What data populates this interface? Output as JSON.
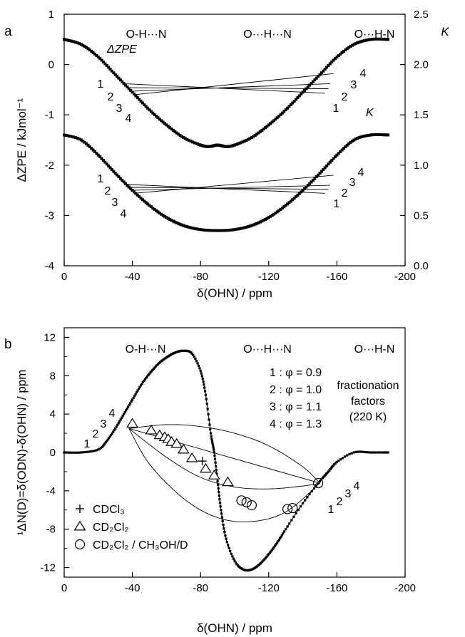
{
  "chart_data": [
    {
      "type": "line",
      "panel": "a",
      "xlabel": "δ(OHN) / ppm",
      "ylabel": "ΔZPE / kJmol⁻¹",
      "y2label": "K",
      "xlim": [
        0,
        -200
      ],
      "ylim": [
        -4,
        1
      ],
      "y2lim": [
        0,
        2.5
      ],
      "x_ticks": [
        "0",
        "-40",
        "-80",
        "-120",
        "-160",
        "-200"
      ],
      "x_tick_values": [
        0,
        -40,
        -80,
        -120,
        -160,
        -200
      ],
      "y_ticks": [
        "-4",
        "-3",
        "-2",
        "-1",
        "0",
        "1"
      ],
      "y_tick_values": [
        -4,
        -3,
        -2,
        -1,
        0,
        1
      ],
      "y2_ticks": [
        "0.0",
        "0.5",
        "1.0",
        "1.5",
        "2.0",
        "2.5"
      ],
      "y2_tick_values": [
        0,
        0.5,
        1,
        1.5,
        2,
        2.5
      ],
      "header_labels": [
        "O-H···N",
        "O···H···N",
        "O···H-N"
      ],
      "curve_labels": {
        "zpe": "ΔZPE",
        "k": "K"
      },
      "number_labels": [
        "1",
        "2",
        "3",
        "4"
      ],
      "series": [
        {
          "name": "ΔZPE",
          "x": [
            0,
            -10,
            -20,
            -30,
            -40,
            -50,
            -60,
            -70,
            -80,
            -85,
            -90,
            -95,
            -100,
            -110,
            -120,
            -130,
            -140,
            -150,
            -160,
            -170,
            -180,
            -190
          ],
          "y": [
            0.5,
            0.4,
            0.15,
            -0.2,
            -0.55,
            -0.9,
            -1.2,
            -1.45,
            -1.6,
            -1.63,
            -1.6,
            -1.63,
            -1.6,
            -1.45,
            -1.2,
            -0.9,
            -0.55,
            -0.2,
            0.15,
            0.4,
            0.5,
            0.5
          ]
        },
        {
          "name": "K",
          "x": [
            0,
            -10,
            -20,
            -30,
            -40,
            -50,
            -60,
            -70,
            -80,
            -90,
            -100,
            -110,
            -120,
            -130,
            -140,
            -150,
            -160,
            -170,
            -180,
            -190
          ],
          "y": [
            1.3,
            1.25,
            1.1,
            0.92,
            0.75,
            0.6,
            0.48,
            0.4,
            0.36,
            0.35,
            0.36,
            0.4,
            0.48,
            0.6,
            0.75,
            0.92,
            1.1,
            1.25,
            1.3,
            1.3
          ],
          "axis": "y2"
        }
      ],
      "connectors_zpe": [
        {
          "label": "1",
          "from": [
            -35,
            -0.38
          ],
          "to": [
            -153,
            -0.57
          ]
        },
        {
          "label": "2",
          "from": [
            -37,
            -0.46
          ],
          "to": [
            -155,
            -0.48
          ]
        },
        {
          "label": "3",
          "from": [
            -39,
            -0.53
          ],
          "to": [
            -156,
            -0.38
          ]
        },
        {
          "label": "4",
          "from": [
            -41,
            -0.6
          ],
          "to": [
            -158,
            -0.18
          ]
        }
      ],
      "connectors_k": [
        {
          "label": "1",
          "from": [
            -35,
            0.81
          ],
          "to": [
            -153,
            0.72
          ]
        },
        {
          "label": "2",
          "from": [
            -37,
            0.78
          ],
          "to": [
            -155,
            0.76
          ]
        },
        {
          "label": "3",
          "from": [
            -39,
            0.75
          ],
          "to": [
            -156,
            0.8
          ]
        },
        {
          "label": "4",
          "from": [
            -41,
            0.72
          ],
          "to": [
            -158,
            0.9
          ]
        }
      ]
    },
    {
      "type": "line",
      "panel": "b",
      "xlabel": "δ(OHN) / ppm",
      "ylabel": "¹ΔN(D)=δ(ODN)-δ(OHN) / ppm",
      "xlim": [
        0,
        -200
      ],
      "ylim": [
        -13,
        13
      ],
      "x_ticks": [
        "0",
        "-40",
        "-80",
        "-120",
        "-160",
        "-200"
      ],
      "x_tick_values": [
        0,
        -40,
        -80,
        -120,
        -160,
        -200
      ],
      "y_ticks": [
        "-12",
        "-8",
        "-4",
        "0",
        "4",
        "8",
        "12"
      ],
      "y_tick_values": [
        -12,
        -8,
        -4,
        0,
        4,
        8,
        12
      ],
      "header_labels": [
        "O-H···N",
        "O···H···N",
        "O···H-N"
      ],
      "phi_labels": [
        "1 : φ = 0.9",
        "2 : φ = 1.0",
        "3 : φ = 1.1",
        "4 : φ = 1.3"
      ],
      "fractionation_label": [
        "fractionation",
        "factors",
        "(220 K)"
      ],
      "number_labels": [
        "1",
        "2",
        "3",
        "4"
      ],
      "legend": [
        {
          "marker": "plus",
          "label": "CDCl₃"
        },
        {
          "marker": "triangle",
          "label": "CD₂Cl₂"
        },
        {
          "marker": "circle",
          "label": "CD₂Cl₂ / CH₃OH/D"
        }
      ],
      "legend_position": "bottom-left",
      "series": [
        {
          "name": "model",
          "x": [
            0,
            -10,
            -20,
            -25,
            -30,
            -35,
            -40,
            -45,
            -50,
            -55,
            -60,
            -65,
            -70,
            -75,
            -80,
            -83,
            -86,
            -88,
            -90,
            -92,
            -95,
            -100,
            -105,
            -110,
            -115,
            -120,
            -125,
            -130,
            -140,
            -150,
            -155,
            -160,
            -170,
            -180,
            -190
          ],
          "y": [
            0,
            0,
            0.3,
            1.2,
            2.5,
            4,
            5.5,
            7,
            8.2,
            9.2,
            9.9,
            10.4,
            10.6,
            10.3,
            8.5,
            6,
            2,
            0,
            -3,
            -6,
            -9,
            -11.3,
            -12.2,
            -12.2,
            -11.6,
            -10.6,
            -9.4,
            -8,
            -5.3,
            -3,
            -2,
            -1,
            0,
            0,
            0
          ]
        }
      ],
      "curves_phi": [
        {
          "label": "1",
          "x": [
            -38,
            -60,
            -80,
            -100,
            -120,
            -140,
            -150
          ],
          "y": [
            2.5,
            2.9,
            2.7,
            2.0,
            0.7,
            -1.5,
            -3.2
          ]
        },
        {
          "label": "2",
          "x": [
            -38,
            -150
          ],
          "y": [
            2.5,
            -3.2
          ]
        },
        {
          "label": "3",
          "x": [
            -38,
            -60,
            -80,
            -100,
            -120,
            -140,
            -150
          ],
          "y": [
            2.5,
            -0.5,
            -2.6,
            -3.6,
            -3.8,
            -3.5,
            -3.2
          ]
        },
        {
          "label": "4",
          "x": [
            -38,
            -50,
            -70,
            -90,
            -110,
            -130,
            -150
          ],
          "y": [
            2.5,
            -1.2,
            -4.8,
            -6.8,
            -7.2,
            -6.2,
            -3.2
          ]
        }
      ],
      "points_cdcl3": [
        {
          "x": -81,
          "y": -0.9
        }
      ],
      "points_cd2cl2": [
        {
          "x": -40,
          "y": 3.0
        },
        {
          "x": -51,
          "y": 2.3
        },
        {
          "x": -56,
          "y": 1.8
        },
        {
          "x": -59,
          "y": 1.6
        },
        {
          "x": -61,
          "y": 1.4
        },
        {
          "x": -63,
          "y": 1.1
        },
        {
          "x": -66,
          "y": 0.9
        },
        {
          "x": -70,
          "y": 0.3
        },
        {
          "x": -75,
          "y": -0.6
        },
        {
          "x": -83,
          "y": -1.7
        },
        {
          "x": -88,
          "y": -2.4
        },
        {
          "x": -96,
          "y": -3.1
        }
      ],
      "points_methanol": [
        {
          "x": -104,
          "y": -5.0
        },
        {
          "x": -107,
          "y": -5.2
        },
        {
          "x": -110,
          "y": -5.5
        },
        {
          "x": -131,
          "y": -5.9
        },
        {
          "x": -134,
          "y": -5.8
        },
        {
          "x": -149,
          "y": -3.2
        }
      ]
    }
  ]
}
